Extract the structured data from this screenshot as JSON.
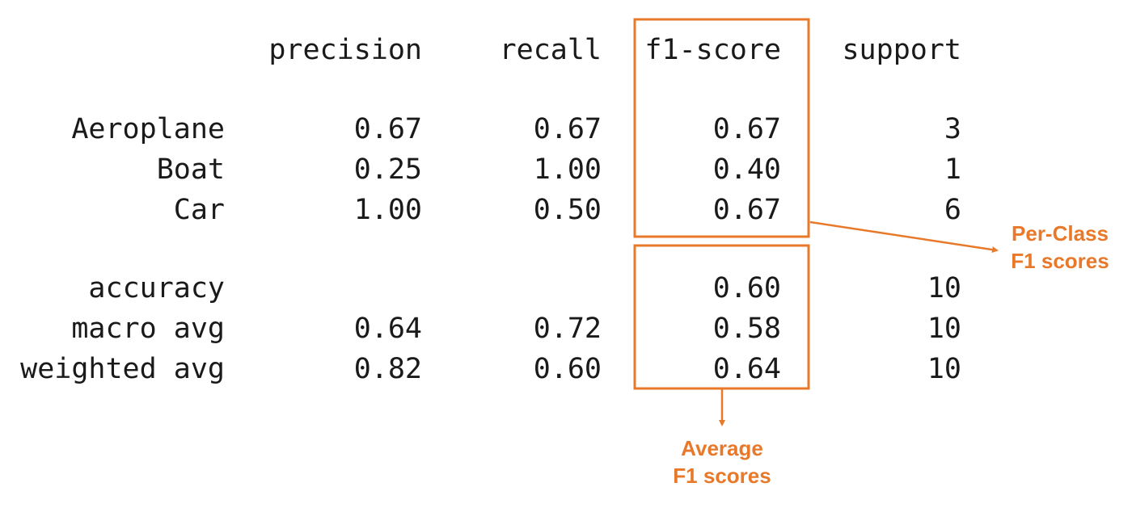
{
  "report": {
    "headers": [
      "precision",
      "recall",
      "f1-score",
      "support"
    ],
    "class_rows": [
      {
        "label": "Aeroplane",
        "precision": "0.67",
        "recall": "0.67",
        "f1": "0.67",
        "support": "3"
      },
      {
        "label": "Boat",
        "precision": "0.25",
        "recall": "1.00",
        "f1": "0.40",
        "support": "1"
      },
      {
        "label": "Car",
        "precision": "1.00",
        "recall": "0.50",
        "f1": "0.67",
        "support": "6"
      }
    ],
    "summary_rows": [
      {
        "label": "accuracy",
        "precision": "",
        "recall": "",
        "f1": "0.60",
        "support": "10"
      },
      {
        "label": "macro avg",
        "precision": "0.64",
        "recall": "0.72",
        "f1": "0.58",
        "support": "10"
      },
      {
        "label": "weighted avg",
        "precision": "0.82",
        "recall": "0.60",
        "f1": "0.64",
        "support": "10"
      }
    ]
  },
  "annotations": {
    "per_class": {
      "line1": "Per-Class",
      "line2": "F1 scores"
    },
    "average": {
      "line1": "Average",
      "line2": "F1 scores"
    }
  },
  "colors": {
    "accent": "#e8792a",
    "text": "#1a1a1a"
  }
}
